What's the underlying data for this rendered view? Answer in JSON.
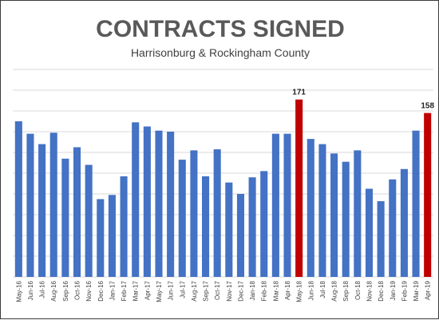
{
  "chart_data": {
    "type": "bar",
    "title": "CONTRACTS SIGNED",
    "subtitle": "Harrisonburg & Rockingham County",
    "xlabel": "",
    "ylabel": "",
    "ylim": [
      0,
      200
    ],
    "grid": true,
    "legend": "none",
    "colors": {
      "default": "#4472c4",
      "highlight": "#c00000",
      "grid": "#d9d9d9"
    },
    "categories": [
      "May-16",
      "Jun-16",
      "Jul-16",
      "Aug-16",
      "Sep-16",
      "Oct-16",
      "Nov-16",
      "Dec-16",
      "Jan-17",
      "Feb-17",
      "Mar-17",
      "Apr-17",
      "May-17",
      "Jun-17",
      "Jul-17",
      "Aug-17",
      "Sep-17",
      "Oct-17",
      "Nov-17",
      "Dec-17",
      "Jan-18",
      "Feb-18",
      "Mar-18",
      "Apr-18",
      "May-18",
      "Jun-18",
      "Jul-18",
      "Aug-18",
      "Sep-18",
      "Oct-18",
      "Nov-18",
      "Dec-18",
      "Jan-19",
      "Feb-19",
      "Mar-19",
      "Apr-19"
    ],
    "values": [
      150,
      138,
      128,
      139,
      114,
      125,
      108,
      75,
      79,
      97,
      149,
      145,
      141,
      140,
      113,
      122,
      97,
      123,
      91,
      80,
      96,
      102,
      138,
      138,
      171,
      133,
      128,
      119,
      111,
      122,
      85,
      73,
      94,
      104,
      141,
      158
    ],
    "highlight": [
      false,
      false,
      false,
      false,
      false,
      false,
      false,
      false,
      false,
      false,
      false,
      false,
      false,
      false,
      false,
      false,
      false,
      false,
      false,
      false,
      false,
      false,
      false,
      false,
      true,
      false,
      false,
      false,
      false,
      false,
      false,
      false,
      false,
      false,
      false,
      true
    ],
    "data_labels": {
      "24": "171",
      "35": "158"
    }
  }
}
